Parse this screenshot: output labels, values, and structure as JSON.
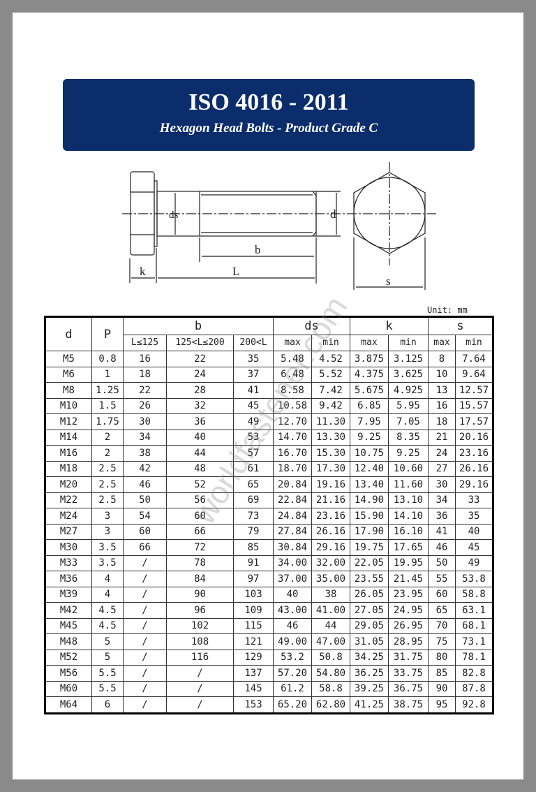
{
  "title": "ISO 4016 - 2011",
  "subtitle": "Hexagon Head Bolts - Product Grade C",
  "drawing": {
    "labels": {
      "ds": "ds",
      "d": "d",
      "b": "b",
      "k": "k",
      "L": "L",
      "s": "s"
    }
  },
  "unit": "Unit: mm",
  "watermark": "worldfastener.com",
  "colors": {
    "banner": "#0b2d6b",
    "border": "#8a8a8a"
  },
  "table": {
    "group_headers": {
      "d": "d",
      "P": "P",
      "b": "b",
      "ds": "ds",
      "k": "k",
      "s": "s"
    },
    "sub_headers": [
      "L≤125",
      "125<L≤200",
      "200<L",
      "max",
      "min",
      "max",
      "min",
      "max",
      "min"
    ],
    "rows": [
      [
        "M5",
        "0.8",
        "16",
        "22",
        "35",
        "5.48",
        "4.52",
        "3.875",
        "3.125",
        "8",
        "7.64"
      ],
      [
        "M6",
        "1",
        "18",
        "24",
        "37",
        "6.48",
        "5.52",
        "4.375",
        "3.625",
        "10",
        "9.64"
      ],
      [
        "M8",
        "1.25",
        "22",
        "28",
        "41",
        "8.58",
        "7.42",
        "5.675",
        "4.925",
        "13",
        "12.57"
      ],
      [
        "M10",
        "1.5",
        "26",
        "32",
        "45",
        "10.58",
        "9.42",
        "6.85",
        "5.95",
        "16",
        "15.57"
      ],
      [
        "M12",
        "1.75",
        "30",
        "36",
        "49",
        "12.70",
        "11.30",
        "7.95",
        "7.05",
        "18",
        "17.57"
      ],
      [
        "M14",
        "2",
        "34",
        "40",
        "53",
        "14.70",
        "13.30",
        "9.25",
        "8.35",
        "21",
        "20.16"
      ],
      [
        "M16",
        "2",
        "38",
        "44",
        "57",
        "16.70",
        "15.30",
        "10.75",
        "9.25",
        "24",
        "23.16"
      ],
      [
        "M18",
        "2.5",
        "42",
        "48",
        "61",
        "18.70",
        "17.30",
        "12.40",
        "10.60",
        "27",
        "26.16"
      ],
      [
        "M20",
        "2.5",
        "46",
        "52",
        "65",
        "20.84",
        "19.16",
        "13.40",
        "11.60",
        "30",
        "29.16"
      ],
      [
        "M22",
        "2.5",
        "50",
        "56",
        "69",
        "22.84",
        "21.16",
        "14.90",
        "13.10",
        "34",
        "33"
      ],
      [
        "M24",
        "3",
        "54",
        "60",
        "73",
        "24.84",
        "23.16",
        "15.90",
        "14.10",
        "36",
        "35"
      ],
      [
        "M27",
        "3",
        "60",
        "66",
        "79",
        "27.84",
        "26.16",
        "17.90",
        "16.10",
        "41",
        "40"
      ],
      [
        "M30",
        "3.5",
        "66",
        "72",
        "85",
        "30.84",
        "29.16",
        "19.75",
        "17.65",
        "46",
        "45"
      ],
      [
        "M33",
        "3.5",
        "/",
        "78",
        "91",
        "34.00",
        "32.00",
        "22.05",
        "19.95",
        "50",
        "49"
      ],
      [
        "M36",
        "4",
        "/",
        "84",
        "97",
        "37.00",
        "35.00",
        "23.55",
        "21.45",
        "55",
        "53.8"
      ],
      [
        "M39",
        "4",
        "/",
        "90",
        "103",
        "40",
        "38",
        "26.05",
        "23.95",
        "60",
        "58.8"
      ],
      [
        "M42",
        "4.5",
        "/",
        "96",
        "109",
        "43.00",
        "41.00",
        "27.05",
        "24.95",
        "65",
        "63.1"
      ],
      [
        "M45",
        "4.5",
        "/",
        "102",
        "115",
        "46",
        "44",
        "29.05",
        "26.95",
        "70",
        "68.1"
      ],
      [
        "M48",
        "5",
        "/",
        "108",
        "121",
        "49.00",
        "47.00",
        "31.05",
        "28.95",
        "75",
        "73.1"
      ],
      [
        "M52",
        "5",
        "/",
        "116",
        "129",
        "53.2",
        "50.8",
        "34.25",
        "31.75",
        "80",
        "78.1"
      ],
      [
        "M56",
        "5.5",
        "/",
        "/",
        "137",
        "57.20",
        "54.80",
        "36.25",
        "33.75",
        "85",
        "82.8"
      ],
      [
        "M60",
        "5.5",
        "/",
        "/",
        "145",
        "61.2",
        "58.8",
        "39.25",
        "36.75",
        "90",
        "87.8"
      ],
      [
        "M64",
        "6",
        "/",
        "/",
        "153",
        "65.20",
        "62.80",
        "41.25",
        "38.75",
        "95",
        "92.8"
      ]
    ]
  }
}
